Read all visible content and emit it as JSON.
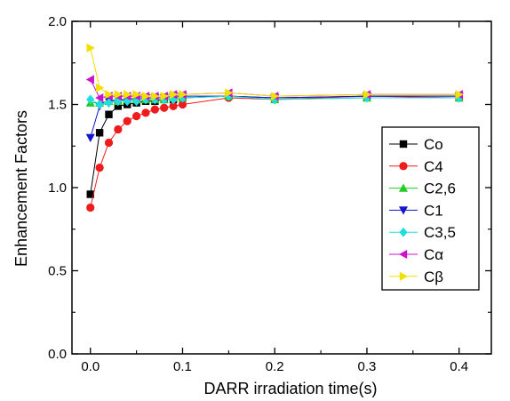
{
  "chart_data": {
    "type": "scatter",
    "xlabel": "DARR irradiation time(s)",
    "ylabel": "Enhancement Factors",
    "xlim": [
      -0.02,
      0.435
    ],
    "ylim": [
      0.0,
      2.0
    ],
    "x_ticks": [
      0.0,
      0.1,
      0.2,
      0.3,
      0.4
    ],
    "x_tick_labels": [
      "0.0",
      "0.1",
      "0.2",
      "0.3",
      "0.4"
    ],
    "y_ticks": [
      0.0,
      0.5,
      1.0,
      1.5,
      2.0
    ],
    "y_tick_labels": [
      "0.0",
      "0.5",
      "1.0",
      "1.5",
      "2.0"
    ],
    "grid": false,
    "legend_position": "right",
    "x": [
      0.0,
      0.01,
      0.02,
      0.03,
      0.04,
      0.05,
      0.06,
      0.07,
      0.08,
      0.09,
      0.1,
      0.15,
      0.2,
      0.3,
      0.4
    ],
    "series": [
      {
        "name": "Co",
        "marker": "square",
        "color": "#000000",
        "values": [
          0.96,
          1.33,
          1.44,
          1.49,
          1.5,
          1.51,
          1.52,
          1.52,
          1.53,
          1.53,
          1.54,
          1.55,
          1.54,
          1.55,
          1.55
        ]
      },
      {
        "name": "C4",
        "marker": "circle",
        "color": "#ee1c1c",
        "values": [
          0.88,
          1.12,
          1.27,
          1.35,
          1.4,
          1.43,
          1.45,
          1.47,
          1.48,
          1.49,
          1.5,
          1.54,
          1.53,
          1.55,
          1.54
        ]
      },
      {
        "name": "C2,6",
        "marker": "triangle-up",
        "color": "#22cc22",
        "values": [
          1.51,
          1.51,
          1.52,
          1.52,
          1.53,
          1.53,
          1.53,
          1.53,
          1.53,
          1.54,
          1.54,
          1.55,
          1.53,
          1.54,
          1.54
        ]
      },
      {
        "name": "C1",
        "marker": "triangle-down",
        "color": "#1515cc",
        "values": [
          1.3,
          1.49,
          1.52,
          1.53,
          1.53,
          1.54,
          1.54,
          1.54,
          1.54,
          1.55,
          1.55,
          1.55,
          1.54,
          1.55,
          1.55
        ]
      },
      {
        "name": "C3,5",
        "marker": "diamond",
        "color": "#22dddd",
        "values": [
          1.53,
          1.5,
          1.51,
          1.52,
          1.52,
          1.52,
          1.53,
          1.53,
          1.53,
          1.53,
          1.54,
          1.55,
          1.53,
          1.54,
          1.54
        ]
      },
      {
        "name": "Cα",
        "marker": "triangle-left",
        "color": "#cc11cc",
        "values": [
          1.65,
          1.54,
          1.55,
          1.55,
          1.55,
          1.55,
          1.55,
          1.55,
          1.55,
          1.56,
          1.56,
          1.57,
          1.55,
          1.56,
          1.56
        ]
      },
      {
        "name": "Cβ",
        "marker": "triangle-right",
        "color": "#f0e000",
        "values": [
          1.84,
          1.6,
          1.56,
          1.56,
          1.56,
          1.56,
          1.55,
          1.55,
          1.55,
          1.56,
          1.56,
          1.57,
          1.55,
          1.56,
          1.56
        ]
      }
    ]
  }
}
